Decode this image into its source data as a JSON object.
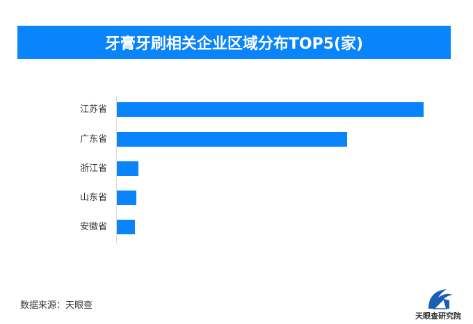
{
  "header": {
    "title": "牙膏牙刷相关企业区域分布TOP5(家)"
  },
  "footer": {
    "source": "数据来源：天眼查",
    "logo_text": "天眼查研究院",
    "logo_icon": "tianyancha-logo-icon"
  },
  "colors": {
    "bar": "#0a84fa",
    "title_bg": "#0a84fa",
    "title_text": "#ffffff",
    "label_text": "#333333",
    "axis": "#d9d9d9"
  },
  "chart_data": {
    "type": "bar",
    "orientation": "horizontal",
    "title": "牙膏牙刷相关企业区域分布TOP5(家)",
    "xlabel": "",
    "ylabel": "",
    "categories": [
      "江苏省",
      "广东省",
      "浙江省",
      "山东省",
      "安徽省"
    ],
    "values": [
      441,
      331,
      31,
      28,
      26
    ],
    "values_note": "relative bar lengths (no numeric labels shown); unit: 家",
    "grid": false,
    "legend": null
  }
}
